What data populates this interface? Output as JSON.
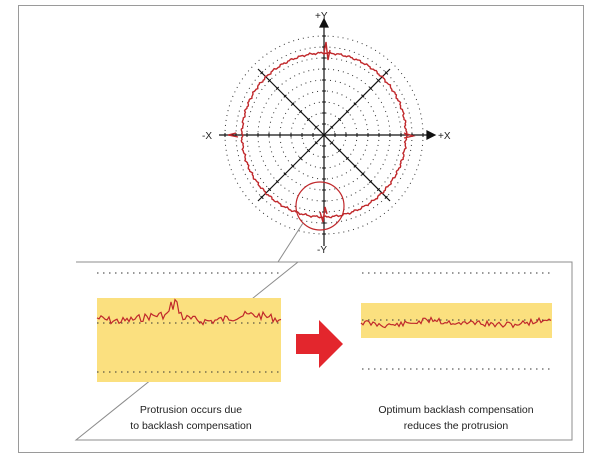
{
  "diagram": {
    "axes": {
      "pos_y": "+Y",
      "neg_y": "-Y",
      "pos_x": "+X",
      "neg_x": "-X"
    },
    "left_panel": {
      "caption_line1": "Protrusion occurs due",
      "caption_line2": "to backlash compensation"
    },
    "right_panel": {
      "caption_line1": "Optimum backlash compensation",
      "caption_line2": "reduces the protrusion"
    },
    "colors": {
      "trace": "#c0282b",
      "highlight_band": "#fbe07f",
      "arrow": "#e3262d",
      "axis": "#111111",
      "border": "#8c8c8c"
    }
  }
}
